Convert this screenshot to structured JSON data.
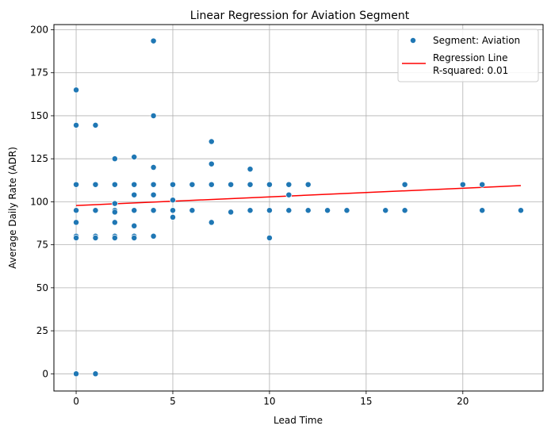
{
  "chart_data": {
    "type": "scatter",
    "title": "Linear Regression for Aviation Segment",
    "xlabel": "Lead Time",
    "ylabel": "Average Daily Rate (ADR)",
    "xlim": [
      -1.15,
      24.15
    ],
    "ylim": [
      -10,
      203
    ],
    "xticks": [
      0,
      5,
      10,
      15,
      20
    ],
    "yticks": [
      0,
      25,
      50,
      75,
      100,
      125,
      150,
      175,
      200
    ],
    "grid": true,
    "legend_position": "top-right",
    "colors": {
      "points": "#1f77b4",
      "line": "#ff0000"
    },
    "series": [
      {
        "name": "Segment: Aviation",
        "type": "scatter",
        "points": [
          [
            0,
            165
          ],
          [
            0,
            144.5
          ],
          [
            0,
            110
          ],
          [
            0,
            95
          ],
          [
            0,
            88
          ],
          [
            0,
            80
          ],
          [
            0,
            79
          ],
          [
            0,
            0
          ],
          [
            1,
            144.5
          ],
          [
            1,
            110
          ],
          [
            1,
            95
          ],
          [
            1,
            80
          ],
          [
            1,
            79
          ],
          [
            1,
            0
          ],
          [
            2,
            125
          ],
          [
            2,
            110
          ],
          [
            2,
            99
          ],
          [
            2,
            95
          ],
          [
            2,
            94
          ],
          [
            2,
            88
          ],
          [
            2,
            80
          ],
          [
            2,
            79
          ],
          [
            3,
            126
          ],
          [
            3,
            110
          ],
          [
            3,
            104
          ],
          [
            3,
            95
          ],
          [
            3,
            86
          ],
          [
            3,
            80
          ],
          [
            3,
            79
          ],
          [
            4,
            193.5
          ],
          [
            4,
            150
          ],
          [
            4,
            120
          ],
          [
            4,
            110
          ],
          [
            4,
            104
          ],
          [
            4,
            95
          ],
          [
            4,
            80
          ],
          [
            5,
            110
          ],
          [
            5,
            101
          ],
          [
            5,
            95
          ],
          [
            5,
            91
          ],
          [
            6,
            110
          ],
          [
            6,
            95
          ],
          [
            7,
            135
          ],
          [
            7,
            122
          ],
          [
            7,
            110
          ],
          [
            7,
            88
          ],
          [
            8,
            110
          ],
          [
            8,
            94
          ],
          [
            9,
            119
          ],
          [
            9,
            110
          ],
          [
            9,
            95
          ],
          [
            10,
            110
          ],
          [
            10,
            95
          ],
          [
            10,
            79
          ],
          [
            11,
            110
          ],
          [
            11,
            104
          ],
          [
            11,
            95
          ],
          [
            12,
            110
          ],
          [
            12,
            95
          ],
          [
            13,
            95
          ],
          [
            14,
            95
          ],
          [
            16,
            95
          ],
          [
            17,
            110
          ],
          [
            17,
            95
          ],
          [
            20,
            110
          ],
          [
            21,
            110
          ],
          [
            21,
            95
          ],
          [
            23,
            95
          ]
        ]
      },
      {
        "name": "Regression Line",
        "type": "line",
        "x": [
          0,
          23
        ],
        "y": [
          97.8,
          109.4
        ]
      }
    ],
    "annotation": "R-squared: 0.01"
  }
}
